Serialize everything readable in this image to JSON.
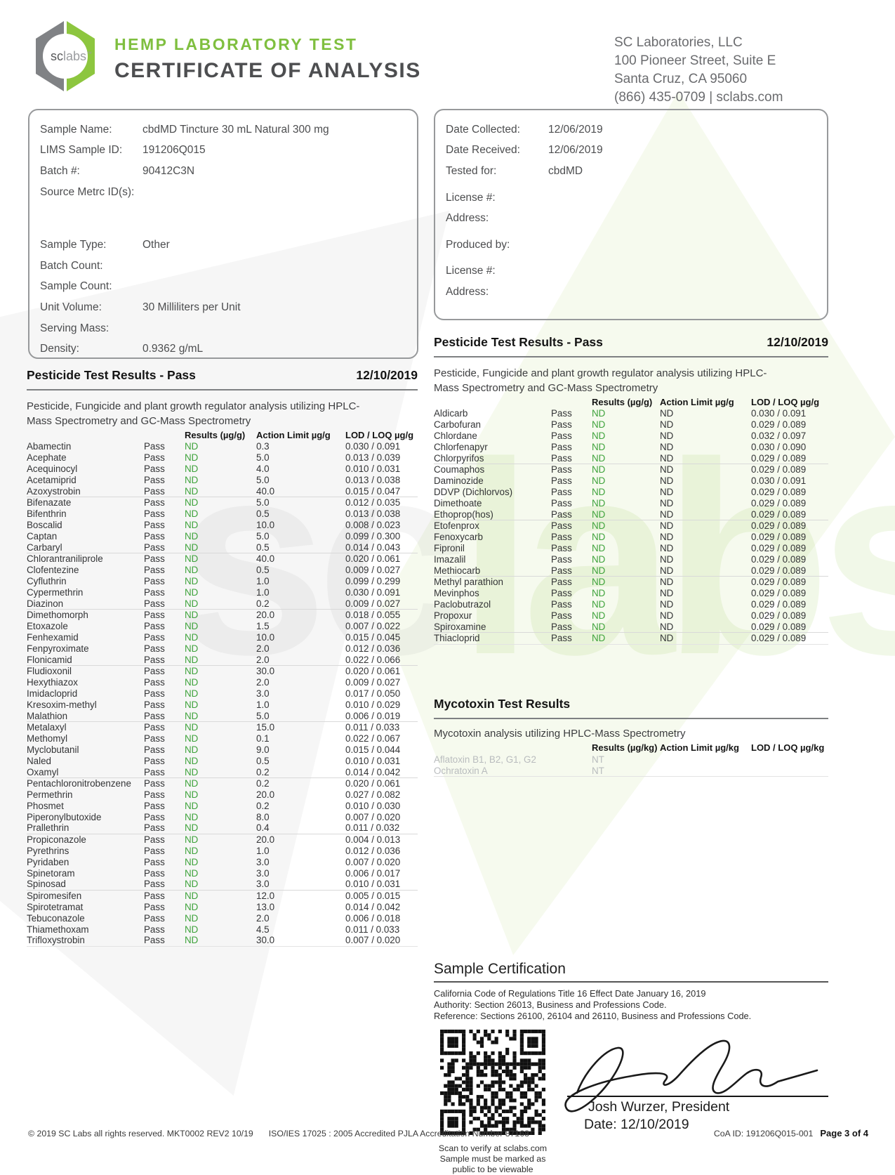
{
  "colors": {
    "brand_green": "#7fbf3f",
    "logo_green": "#8dc63f",
    "logo_gray": "#808285",
    "nd_green": "#3fa33c"
  },
  "header": {
    "logo_text_1": "sc",
    "logo_text_2": "labs",
    "title_line1": "HEMP LABORATORY TEST",
    "title_line2": "CERTIFICATE OF ANALYSIS",
    "lab_name": "SC Laboratories, LLC",
    "lab_address1": "100 Pioneer Street, Suite E",
    "lab_address2": "Santa Cruz, CA 95060",
    "lab_phone_web": "(866) 435-0709  |  sclabs.com"
  },
  "watermark_text_1": "sc",
  "watermark_text_2": "labs",
  "sample_info": {
    "group1": [
      {
        "label": "Sample Name:",
        "value": "cbdMD Tincture 30 mL Natural 300 mg"
      },
      {
        "label": "LIMS Sample ID:",
        "value": "191206Q015"
      },
      {
        "label": "Batch #:",
        "value": "90412C3N"
      },
      {
        "label": "Source Metrc ID(s):",
        "value": ""
      }
    ],
    "group2": [
      {
        "label": "Sample Type:",
        "value": "Other"
      },
      {
        "label": "Batch Count:",
        "value": ""
      },
      {
        "label": "Sample Count:",
        "value": ""
      },
      {
        "label": "Unit Volume:",
        "value": "30 Milliliters per Unit"
      },
      {
        "label": "Serving Mass:",
        "value": ""
      },
      {
        "label": "Density:",
        "value": "0.9362 g/mL"
      }
    ]
  },
  "client_info": {
    "group1": [
      {
        "label": "Date Collected:",
        "value": "12/06/2019"
      },
      {
        "label": "Date Received:",
        "value": "12/06/2019"
      },
      {
        "label": "Tested for:",
        "value": "cbdMD"
      }
    ],
    "group2": [
      {
        "label": "License #:",
        "value": ""
      },
      {
        "label": "Address:",
        "value": ""
      }
    ],
    "group3": [
      {
        "label": "Produced by:",
        "value": ""
      }
    ],
    "group4": [
      {
        "label": "License #:",
        "value": ""
      },
      {
        "label": "Address:",
        "value": ""
      }
    ]
  },
  "pesticide_left": {
    "title": "Pesticide Test Results - Pass",
    "date": "12/10/2019",
    "method": "Pesticide, Fungicide and plant growth regulator analysis utilizing HPLC-Mass Spectrometry and GC-Mass Spectrometry",
    "columns": [
      "Results (µg/g)",
      "Action Limit µg/g",
      "LOD / LOQ µg/g"
    ],
    "rows": [
      {
        "analyte": "Abamectin",
        "status": "Pass",
        "result": "ND",
        "action_limit": "0.3",
        "lod_loq": "0.030 / 0.091"
      },
      {
        "analyte": "Acephate",
        "status": "Pass",
        "result": "ND",
        "action_limit": "5.0",
        "lod_loq": "0.013 / 0.039"
      },
      {
        "analyte": "Acequinocyl",
        "status": "Pass",
        "result": "ND",
        "action_limit": "4.0",
        "lod_loq": "0.010 / 0.031"
      },
      {
        "analyte": "Acetamiprid",
        "status": "Pass",
        "result": "ND",
        "action_limit": "5.0",
        "lod_loq": "0.013 / 0.038"
      },
      {
        "analyte": "Azoxystrobin",
        "status": "Pass",
        "result": "ND",
        "action_limit": "40.0",
        "lod_loq": "0.015 / 0.047"
      },
      {
        "analyte": "Bifenazate",
        "status": "Pass",
        "result": "ND",
        "action_limit": "5.0",
        "lod_loq": "0.012 / 0.035"
      },
      {
        "analyte": "Bifenthrin",
        "status": "Pass",
        "result": "ND",
        "action_limit": "0.5",
        "lod_loq": "0.013 / 0.038"
      },
      {
        "analyte": "Boscalid",
        "status": "Pass",
        "result": "ND",
        "action_limit": "10.0",
        "lod_loq": "0.008 / 0.023"
      },
      {
        "analyte": "Captan",
        "status": "Pass",
        "result": "ND",
        "action_limit": "5.0",
        "lod_loq": "0.099 / 0.300"
      },
      {
        "analyte": "Carbaryl",
        "status": "Pass",
        "result": "ND",
        "action_limit": "0.5",
        "lod_loq": "0.014 / 0.043"
      },
      {
        "analyte": "Chlorantraniliprole",
        "status": "Pass",
        "result": "ND",
        "action_limit": "40.0",
        "lod_loq": "0.020 / 0.061"
      },
      {
        "analyte": "Clofentezine",
        "status": "Pass",
        "result": "ND",
        "action_limit": "0.5",
        "lod_loq": "0.009 / 0.027"
      },
      {
        "analyte": "Cyfluthrin",
        "status": "Pass",
        "result": "ND",
        "action_limit": "1.0",
        "lod_loq": "0.099 / 0.299"
      },
      {
        "analyte": "Cypermethrin",
        "status": "Pass",
        "result": "ND",
        "action_limit": "1.0",
        "lod_loq": "0.030 / 0.091"
      },
      {
        "analyte": "Diazinon",
        "status": "Pass",
        "result": "ND",
        "action_limit": "0.2",
        "lod_loq": "0.009 / 0.027"
      },
      {
        "analyte": "Dimethomorph",
        "status": "Pass",
        "result": "ND",
        "action_limit": "20.0",
        "lod_loq": "0.018 / 0.055"
      },
      {
        "analyte": "Etoxazole",
        "status": "Pass",
        "result": "ND",
        "action_limit": "1.5",
        "lod_loq": "0.007 / 0.022"
      },
      {
        "analyte": "Fenhexamid",
        "status": "Pass",
        "result": "ND",
        "action_limit": "10.0",
        "lod_loq": "0.015 / 0.045"
      },
      {
        "analyte": "Fenpyroximate",
        "status": "Pass",
        "result": "ND",
        "action_limit": "2.0",
        "lod_loq": "0.012 / 0.036"
      },
      {
        "analyte": "Flonicamid",
        "status": "Pass",
        "result": "ND",
        "action_limit": "2.0",
        "lod_loq": "0.022 / 0.066"
      },
      {
        "analyte": "Fludioxonil",
        "status": "Pass",
        "result": "ND",
        "action_limit": "30.0",
        "lod_loq": "0.020 / 0.061"
      },
      {
        "analyte": "Hexythiazox",
        "status": "Pass",
        "result": "ND",
        "action_limit": "2.0",
        "lod_loq": "0.009 / 0.027"
      },
      {
        "analyte": "Imidacloprid",
        "status": "Pass",
        "result": "ND",
        "action_limit": "3.0",
        "lod_loq": "0.017 / 0.050"
      },
      {
        "analyte": "Kresoxim-methyl",
        "status": "Pass",
        "result": "ND",
        "action_limit": "1.0",
        "lod_loq": "0.010 / 0.029"
      },
      {
        "analyte": "Malathion",
        "status": "Pass",
        "result": "ND",
        "action_limit": "5.0",
        "lod_loq": "0.006 / 0.019"
      },
      {
        "analyte": "Metalaxyl",
        "status": "Pass",
        "result": "ND",
        "action_limit": "15.0",
        "lod_loq": "0.011 / 0.033"
      },
      {
        "analyte": "Methomyl",
        "status": "Pass",
        "result": "ND",
        "action_limit": "0.1",
        "lod_loq": "0.022 / 0.067"
      },
      {
        "analyte": "Myclobutanil",
        "status": "Pass",
        "result": "ND",
        "action_limit": "9.0",
        "lod_loq": "0.015 / 0.044"
      },
      {
        "analyte": "Naled",
        "status": "Pass",
        "result": "ND",
        "action_limit": "0.5",
        "lod_loq": "0.010 / 0.031"
      },
      {
        "analyte": "Oxamyl",
        "status": "Pass",
        "result": "ND",
        "action_limit": "0.2",
        "lod_loq": "0.014 / 0.042"
      },
      {
        "analyte": "Pentachloronitrobenzene",
        "status": "Pass",
        "result": "ND",
        "action_limit": "0.2",
        "lod_loq": "0.020 / 0.061"
      },
      {
        "analyte": "Permethrin",
        "status": "Pass",
        "result": "ND",
        "action_limit": "20.0",
        "lod_loq": "0.027 / 0.082"
      },
      {
        "analyte": "Phosmet",
        "status": "Pass",
        "result": "ND",
        "action_limit": "0.2",
        "lod_loq": "0.010 / 0.030"
      },
      {
        "analyte": "Piperonylbutoxide",
        "status": "Pass",
        "result": "ND",
        "action_limit": "8.0",
        "lod_loq": "0.007 / 0.020"
      },
      {
        "analyte": "Prallethrin",
        "status": "Pass",
        "result": "ND",
        "action_limit": "0.4",
        "lod_loq": "0.011 / 0.032"
      },
      {
        "analyte": "Propiconazole",
        "status": "Pass",
        "result": "ND",
        "action_limit": "20.0",
        "lod_loq": "0.004 / 0.013"
      },
      {
        "analyte": "Pyrethrins",
        "status": "Pass",
        "result": "ND",
        "action_limit": "1.0",
        "lod_loq": "0.012 / 0.036"
      },
      {
        "analyte": "Pyridaben",
        "status": "Pass",
        "result": "ND",
        "action_limit": "3.0",
        "lod_loq": "0.007 / 0.020"
      },
      {
        "analyte": "Spinetoram",
        "status": "Pass",
        "result": "ND",
        "action_limit": "3.0",
        "lod_loq": "0.006 / 0.017"
      },
      {
        "analyte": "Spinosad",
        "status": "Pass",
        "result": "ND",
        "action_limit": "3.0",
        "lod_loq": "0.010 / 0.031"
      },
      {
        "analyte": "Spiromesifen",
        "status": "Pass",
        "result": "ND",
        "action_limit": "12.0",
        "lod_loq": "0.005 / 0.015"
      },
      {
        "analyte": "Spirotetramat",
        "status": "Pass",
        "result": "ND",
        "action_limit": "13.0",
        "lod_loq": "0.014 / 0.042"
      },
      {
        "analyte": "Tebuconazole",
        "status": "Pass",
        "result": "ND",
        "action_limit": "2.0",
        "lod_loq": "0.006 / 0.018"
      },
      {
        "analyte": "Thiamethoxam",
        "status": "Pass",
        "result": "ND",
        "action_limit": "4.5",
        "lod_loq": "0.011 / 0.033"
      },
      {
        "analyte": "Trifloxystrobin",
        "status": "Pass",
        "result": "ND",
        "action_limit": "30.0",
        "lod_loq": "0.007 / 0.020"
      }
    ]
  },
  "pesticide_right": {
    "title": "Pesticide Test Results - Pass",
    "date": "12/10/2019",
    "method": "Pesticide, Fungicide and plant growth regulator analysis utilizing HPLC-Mass Spectrometry and GC-Mass Spectrometry",
    "columns": [
      "Results (µg/g)",
      "Action Limit µg/g",
      "LOD / LOQ µg/g"
    ],
    "rows": [
      {
        "analyte": "Aldicarb",
        "status": "Pass",
        "result": "ND",
        "action_limit": "ND",
        "lod_loq": "0.030 / 0.091"
      },
      {
        "analyte": "Carbofuran",
        "status": "Pass",
        "result": "ND",
        "action_limit": "ND",
        "lod_loq": "0.029 / 0.089"
      },
      {
        "analyte": "Chlordane",
        "status": "Pass",
        "result": "ND",
        "action_limit": "ND",
        "lod_loq": "0.032 / 0.097"
      },
      {
        "analyte": "Chlorfenapyr",
        "status": "Pass",
        "result": "ND",
        "action_limit": "ND",
        "lod_loq": "0.030 / 0.090"
      },
      {
        "analyte": "Chlorpyrifos",
        "status": "Pass",
        "result": "ND",
        "action_limit": "ND",
        "lod_loq": "0.029 / 0.089"
      },
      {
        "analyte": "Coumaphos",
        "status": "Pass",
        "result": "ND",
        "action_limit": "ND",
        "lod_loq": "0.029 / 0.089"
      },
      {
        "analyte": "Daminozide",
        "status": "Pass",
        "result": "ND",
        "action_limit": "ND",
        "lod_loq": "0.030 / 0.091"
      },
      {
        "analyte": "DDVP (Dichlorvos)",
        "status": "Pass",
        "result": "ND",
        "action_limit": "ND",
        "lod_loq": "0.029 / 0.089"
      },
      {
        "analyte": "Dimethoate",
        "status": "Pass",
        "result": "ND",
        "action_limit": "ND",
        "lod_loq": "0.029 / 0.089"
      },
      {
        "analyte": "Ethoprop(hos)",
        "status": "Pass",
        "result": "ND",
        "action_limit": "ND",
        "lod_loq": "0.029 / 0.089"
      },
      {
        "analyte": "Etofenprox",
        "status": "Pass",
        "result": "ND",
        "action_limit": "ND",
        "lod_loq": "0.029 / 0.089"
      },
      {
        "analyte": "Fenoxycarb",
        "status": "Pass",
        "result": "ND",
        "action_limit": "ND",
        "lod_loq": "0.029 / 0.089"
      },
      {
        "analyte": "Fipronil",
        "status": "Pass",
        "result": "ND",
        "action_limit": "ND",
        "lod_loq": "0.029 / 0.089"
      },
      {
        "analyte": "Imazalil",
        "status": "Pass",
        "result": "ND",
        "action_limit": "ND",
        "lod_loq": "0.029 / 0.089"
      },
      {
        "analyte": "Methiocarb",
        "status": "Pass",
        "result": "ND",
        "action_limit": "ND",
        "lod_loq": "0.029 / 0.089"
      },
      {
        "analyte": "Methyl parathion",
        "status": "Pass",
        "result": "ND",
        "action_limit": "ND",
        "lod_loq": "0.029 / 0.089"
      },
      {
        "analyte": "Mevinphos",
        "status": "Pass",
        "result": "ND",
        "action_limit": "ND",
        "lod_loq": "0.029 / 0.089"
      },
      {
        "analyte": "Paclobutrazol",
        "status": "Pass",
        "result": "ND",
        "action_limit": "ND",
        "lod_loq": "0.029 / 0.089"
      },
      {
        "analyte": "Propoxur",
        "status": "Pass",
        "result": "ND",
        "action_limit": "ND",
        "lod_loq": "0.029 / 0.089"
      },
      {
        "analyte": "Spiroxamine",
        "status": "Pass",
        "result": "ND",
        "action_limit": "ND",
        "lod_loq": "0.029 / 0.089"
      },
      {
        "analyte": "Thiacloprid",
        "status": "Pass",
        "result": "ND",
        "action_limit": "ND",
        "lod_loq": "0.029 / 0.089"
      }
    ]
  },
  "mycotoxin": {
    "title": "Mycotoxin Test Results",
    "method": "Mycotoxin analysis utilizing HPLC-Mass Spectrometry",
    "columns": [
      "Results (µg/kg)",
      "Action Limit µg/kg",
      "LOD / LOQ µg/kg"
    ],
    "rows": [
      {
        "analyte": "Aflatoxin B1, B2, G1, G2",
        "result": "NT"
      },
      {
        "analyte": "Ochratoxin A",
        "result": "NT"
      }
    ]
  },
  "certification": {
    "title": "Sample Certification",
    "lines": [
      "California Code of Regulations Title 16 Effect Date January 16, 2019",
      "Authority: Section 26013, Business and Professions Code.",
      "Reference: Sections 26100, 26104 and 26110, Business and Professions Code."
    ],
    "qr_caption1": "Scan to verify at sclabs.com",
    "qr_caption2": "Sample must be marked as",
    "qr_caption3": "public to be viewable",
    "signer": "Josh Wurzer, President",
    "sign_date": "Date: 12/10/2019"
  },
  "footer": {
    "copyright": "© 2019 SC Labs all rights reserved. MKT0002 REV2 10/19",
    "accreditation": "ISO/IES 17025 : 2005 Accredited PJLA Accreditation Number 87168",
    "coa_id": "CoA ID: 191206Q015-001",
    "page": "Page 3 of 4"
  }
}
